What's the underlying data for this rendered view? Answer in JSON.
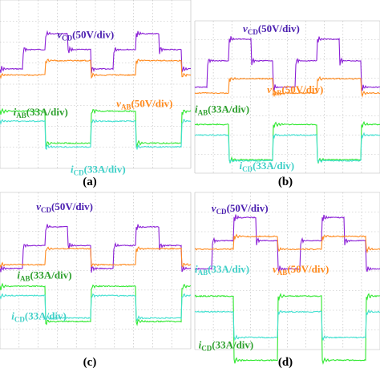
{
  "chart_data": [
    {
      "type": "line",
      "panel": "(a)",
      "grid": true,
      "x_divisions": 10,
      "y_divisions": 8,
      "colors": {
        "vCD": "#8b1fd6",
        "vAB": "#ff8a1e",
        "iAB": "#2ee82e",
        "iCD": "#40e0d0"
      },
      "annotations": [
        {
          "series": "vCD",
          "main": "v",
          "sub": "CD",
          "rest": "(50V/div)",
          "color": "#4b1fb0"
        },
        {
          "series": "vAB",
          "main": "v",
          "sub": "AB",
          "rest": "(50V/div)",
          "color": "#ff8a1e"
        },
        {
          "series": "iAB",
          "main": "i",
          "sub": "AB",
          "rest": "(33A/div)",
          "color": "#2ea02e"
        },
        {
          "series": "iCD",
          "main": "i",
          "sub": "CD",
          "rest": "(33A/div)",
          "color": "#40d0c8"
        }
      ]
    },
    {
      "type": "line",
      "panel": "(b)",
      "grid": true,
      "x_divisions": 10,
      "y_divisions": 8,
      "colors": {
        "vCD": "#8b1fd6",
        "vAB": "#ff8a1e",
        "iAB": "#2ee82e",
        "iCD": "#40e0d0"
      },
      "annotations": [
        {
          "series": "vCD",
          "main": "v",
          "sub": "CD",
          "rest": "(50V/div)",
          "color": "#4b1fb0"
        },
        {
          "series": "vAB",
          "main": "v",
          "sub": "AB",
          "rest": "(50V/div)",
          "color": "#ff8a1e"
        },
        {
          "series": "iAB",
          "main": "i",
          "sub": "AB",
          "rest": "(33A/div)",
          "color": "#2ea02e"
        },
        {
          "series": "iCD",
          "main": "i",
          "sub": "CD",
          "rest": "(33A/div)",
          "color": "#40d0c8"
        }
      ]
    },
    {
      "type": "line",
      "panel": "(c)",
      "grid": true,
      "x_divisions": 10,
      "y_divisions": 8,
      "colors": {
        "vCD": "#8b1fd6",
        "vAB": "#ff8a1e",
        "iAB": "#2ee82e",
        "iCD": "#40e0d0"
      },
      "annotations": [
        {
          "series": "vCD",
          "main": "v",
          "sub": "CD",
          "rest": "(50V/div)",
          "color": "#4b1fb0"
        },
        {
          "series": "iAB",
          "main": "i",
          "sub": "AB",
          "rest": "(33A/div)",
          "color": "#2ea02e"
        },
        {
          "series": "iCD",
          "main": "i",
          "sub": "CD",
          "rest": "(33A/div)",
          "color": "#40d0c8"
        }
      ]
    },
    {
      "type": "line",
      "panel": "(d)",
      "grid": true,
      "x_divisions": 10,
      "y_divisions": 8,
      "colors": {
        "vCD": "#8b1fd6",
        "vAB": "#ff8a1e",
        "iAB": "#2ee82e",
        "iCD": "#40e0d0"
      },
      "annotations": [
        {
          "series": "vCD",
          "main": "v",
          "sub": "CD",
          "rest": "(50V/div)",
          "color": "#4b1fb0"
        },
        {
          "series": "iAB",
          "main": "i",
          "sub": "AB",
          "rest": "(33A/div)",
          "color": "#40d0c8"
        },
        {
          "series": "vAB",
          "main": "v",
          "sub": "AB",
          "rest": "(50V/div)",
          "color": "#ff8a1e"
        },
        {
          "series": "iCD",
          "main": "i",
          "sub": "CD",
          "rest": "(33A/div)",
          "color": "#2ea02e"
        }
      ]
    }
  ]
}
